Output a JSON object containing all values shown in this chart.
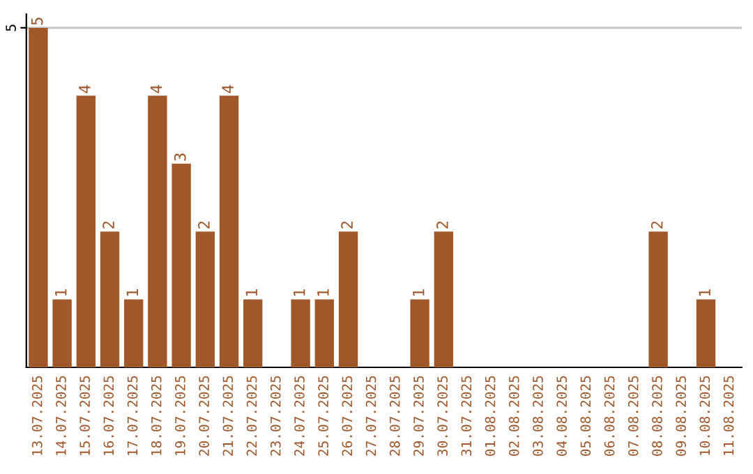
{
  "chart_data": {
    "type": "bar",
    "categories": [
      "13.07.2025",
      "14.07.2025",
      "15.07.2025",
      "16.07.2025",
      "17.07.2025",
      "18.07.2025",
      "19.07.2025",
      "20.07.2025",
      "21.07.2025",
      "22.07.2025",
      "23.07.2025",
      "24.07.2025",
      "25.07.2025",
      "26.07.2025",
      "27.07.2025",
      "28.07.2025",
      "29.07.2025",
      "30.07.2025",
      "31.07.2025",
      "01.08.2025",
      "02.08.2025",
      "03.08.2025",
      "04.08.2025",
      "05.08.2025",
      "06.08.2025",
      "07.08.2025",
      "08.08.2025",
      "09.08.2025",
      "10.08.2025",
      "11.08.2025"
    ],
    "values": [
      5,
      1,
      4,
      2,
      1,
      4,
      3,
      2,
      4,
      1,
      0,
      1,
      1,
      2,
      0,
      0,
      1,
      2,
      0,
      0,
      0,
      0,
      0,
      0,
      0,
      0,
      2,
      0,
      1,
      0
    ],
    "value_labels": [
      "5",
      "1",
      "4",
      "2",
      "1",
      "4",
      "3",
      "2",
      "4",
      "1",
      null,
      "1",
      "1",
      "2",
      null,
      null,
      "1",
      "2",
      null,
      null,
      null,
      null,
      null,
      null,
      null,
      null,
      "2",
      null,
      "1",
      null
    ],
    "color": "#a0572a",
    "ylim": [
      0,
      5.2
    ],
    "yticks": [
      5
    ],
    "grid": "y"
  }
}
